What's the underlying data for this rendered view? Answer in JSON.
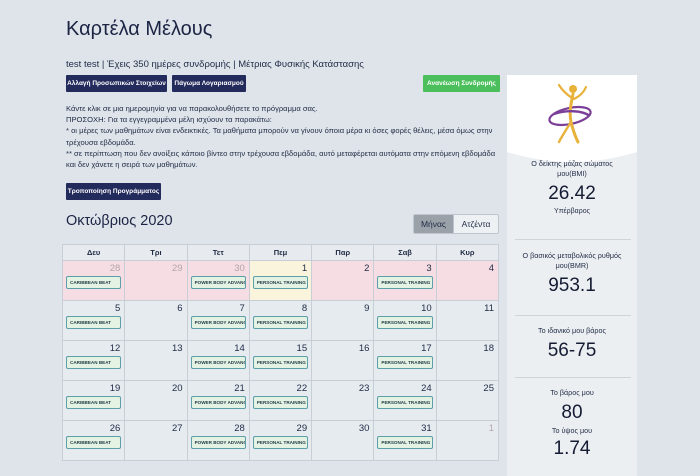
{
  "page": {
    "title": "Καρτέλα Μέλους"
  },
  "member": {
    "summary": "test test | Έχεις 350 ημέρες συνδρομής | Μέτριας Φυσικής Κατάστασης"
  },
  "buttons": {
    "personal_data": "Αλλαγή Προσωπικών Στοιχείων",
    "freeze_account": "Πάγωμα Λογαριασμού",
    "renew_subscription": "Ανανέωση Συνδρομής",
    "modify_program": "Τροποποίηση Προγράμματος"
  },
  "info_lines": [
    "Κάντε κλικ σε μια ημερομηνία για να παρακολουθήσετε το πρόγραμμα σας.",
    "ΠΡΟΣΟΧΗ: Για τα εγγεγραμμένα μέλη ισχύουν τα παρακάτω:",
    "* οι μέρες των μαθημάτων είναι ενδεικτικές. Τα μαθήματα μπορούν να γίνουν όποια μέρα κι όσες φορές θέλεις, μέσα όμως στην τρέχουσα εβδομάδα.",
    "** σε περίπτωση που δεν ανοίξεις κάποιο βίντεο στην τρέχουσα εβδομάδα, αυτό μεταφέρεται αυτόματα στην επόμενη εβδομάδα και δεν χάνετε η σειρά των μαθημάτων."
  ],
  "calendar": {
    "month_label": "Οκτώβριος 2020",
    "view_month": "Μήνας",
    "view_agenda": "Ατζέντα",
    "weekdays": [
      "Δευ",
      "Τρι",
      "Τετ",
      "Πεμ",
      "Παρ",
      "Σαβ",
      "Κυρ"
    ],
    "weeks": [
      [
        {
          "day": "28",
          "kind": "other",
          "event": "CARIBBEAN BEAT"
        },
        {
          "day": "29",
          "kind": "other",
          "event": ""
        },
        {
          "day": "30",
          "kind": "other",
          "event": "POWER BODY ADVANCE"
        },
        {
          "day": "1",
          "kind": "today",
          "event": "PERSONAL TRAINING"
        },
        {
          "day": "2",
          "kind": "pink",
          "event": ""
        },
        {
          "day": "3",
          "kind": "pink",
          "event": "PERSONAL TRAINING"
        },
        {
          "day": "4",
          "kind": "pink",
          "event": ""
        }
      ],
      [
        {
          "day": "5",
          "kind": "normal",
          "event": "CARIBBEAN BEAT"
        },
        {
          "day": "6",
          "kind": "normal",
          "event": ""
        },
        {
          "day": "7",
          "kind": "normal",
          "event": "POWER BODY ADVANCE"
        },
        {
          "day": "8",
          "kind": "normal",
          "event": "PERSONAL TRAINING"
        },
        {
          "day": "9",
          "kind": "normal",
          "event": ""
        },
        {
          "day": "10",
          "kind": "normal",
          "event": "PERSONAL TRAINING"
        },
        {
          "day": "11",
          "kind": "normal",
          "event": ""
        }
      ],
      [
        {
          "day": "12",
          "kind": "normal",
          "event": "CARIBBEAN BEAT"
        },
        {
          "day": "13",
          "kind": "normal",
          "event": ""
        },
        {
          "day": "14",
          "kind": "normal",
          "event": "POWER BODY ADVANCE"
        },
        {
          "day": "15",
          "kind": "normal",
          "event": "PERSONAL TRAINING"
        },
        {
          "day": "16",
          "kind": "normal",
          "event": ""
        },
        {
          "day": "17",
          "kind": "normal",
          "event": "PERSONAL TRAINING"
        },
        {
          "day": "18",
          "kind": "normal",
          "event": ""
        }
      ],
      [
        {
          "day": "19",
          "kind": "normal",
          "event": "CARIBBEAN BEAT"
        },
        {
          "day": "20",
          "kind": "normal",
          "event": ""
        },
        {
          "day": "21",
          "kind": "normal",
          "event": "POWER BODY ADVANCE"
        },
        {
          "day": "22",
          "kind": "normal",
          "event": "PERSONAL TRAINING"
        },
        {
          "day": "23",
          "kind": "normal",
          "event": ""
        },
        {
          "day": "24",
          "kind": "normal",
          "event": "PERSONAL TRAINING"
        },
        {
          "day": "25",
          "kind": "normal",
          "event": ""
        }
      ],
      [
        {
          "day": "26",
          "kind": "normal",
          "event": "CARIBBEAN BEAT"
        },
        {
          "day": "27",
          "kind": "normal",
          "event": ""
        },
        {
          "day": "28",
          "kind": "normal",
          "event": "POWER BODY ADVANCE"
        },
        {
          "day": "29",
          "kind": "normal",
          "event": "PERSONAL TRAINING"
        },
        {
          "day": "30",
          "kind": "normal",
          "event": ""
        },
        {
          "day": "31",
          "kind": "normal",
          "event": "PERSONAL TRAINING"
        },
        {
          "day": "1",
          "kind": "normal-other",
          "event": ""
        }
      ]
    ]
  },
  "stats": {
    "bmi_label": "Ο δείκτης μάζας σώματος μου(BMI)",
    "bmi_value": "26.42",
    "bmi_status": "Υπέρβαρος",
    "bmr_label": "Ο βασικός μεταβολικός ρυθμός μου(BMR)",
    "bmr_value": "953.1",
    "ideal_weight_label": "Το ιδανικό μου βάρος",
    "ideal_weight_value": "56-75",
    "weight_label": "Το βάρος μου",
    "weight_value": "80",
    "height_label": "Το ύψος μου",
    "height_value": "1.74"
  },
  "colors": {
    "primary_dark": "#232a5c",
    "success_green": "#4bbf5b",
    "logo_purple": "#7b3f98",
    "logo_gold": "#e8b23a"
  },
  "icons": {
    "logo": "dancer-logo"
  }
}
